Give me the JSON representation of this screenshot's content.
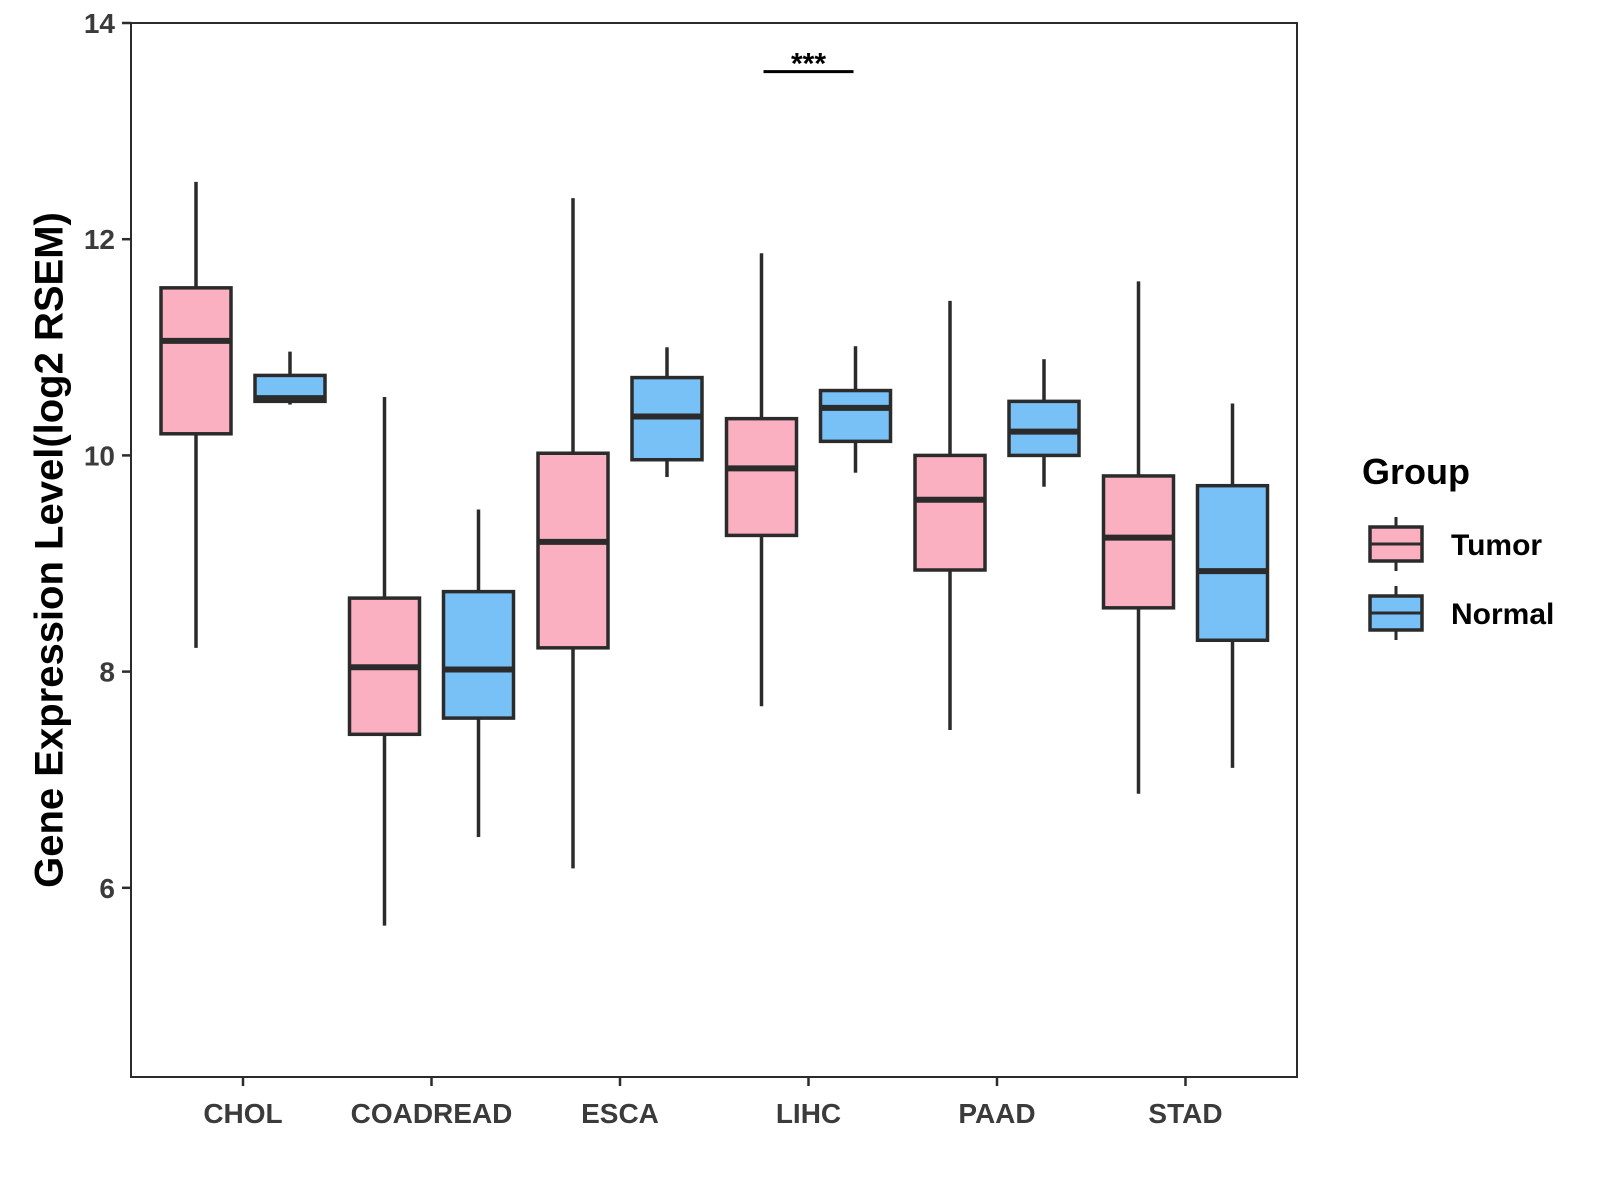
{
  "chart_data": {
    "type": "boxplot",
    "title": "",
    "xlabel": "",
    "ylabel": "Gene Expression Level(log2 RSEM)",
    "ylim": [
      4.25,
      14
    ],
    "yticks": [
      6,
      8,
      10,
      12,
      14
    ],
    "grid": false,
    "categories": [
      "CHOL",
      "COADREAD",
      "ESCA",
      "LIHC",
      "PAAD",
      "STAD"
    ],
    "legend": {
      "title": "Group",
      "position": "right"
    },
    "series": [
      {
        "name": "Tumor",
        "color": "#fbb0c2",
        "boxes": [
          {
            "whisker_low": 8.22,
            "q1": 10.2,
            "median": 11.06,
            "q3": 11.55,
            "whisker_high": 12.53
          },
          {
            "whisker_low": 5.65,
            "q1": 7.42,
            "median": 8.04,
            "q3": 8.68,
            "whisker_high": 10.54
          },
          {
            "whisker_low": 6.18,
            "q1": 8.22,
            "median": 9.2,
            "q3": 10.02,
            "whisker_high": 12.38
          },
          {
            "whisker_low": 7.68,
            "q1": 9.26,
            "median": 9.88,
            "q3": 10.34,
            "whisker_high": 11.87
          },
          {
            "whisker_low": 7.46,
            "q1": 8.94,
            "median": 9.59,
            "q3": 10.0,
            "whisker_high": 11.43
          },
          {
            "whisker_low": 6.87,
            "q1": 8.59,
            "median": 9.24,
            "q3": 9.81,
            "whisker_high": 11.61
          }
        ]
      },
      {
        "name": "Normal",
        "color": "#78c1f7",
        "boxes": [
          {
            "whisker_low": 10.47,
            "q1": 10.5,
            "median": 10.53,
            "q3": 10.74,
            "whisker_high": 10.96
          },
          {
            "whisker_low": 6.47,
            "q1": 7.57,
            "median": 8.02,
            "q3": 8.74,
            "whisker_high": 9.5
          },
          {
            "whisker_low": 9.8,
            "q1": 9.96,
            "median": 10.36,
            "q3": 10.72,
            "whisker_high": 11.0
          },
          {
            "whisker_low": 9.84,
            "q1": 10.13,
            "median": 10.44,
            "q3": 10.6,
            "whisker_high": 11.01
          },
          {
            "whisker_low": 9.71,
            "q1": 10.0,
            "median": 10.22,
            "q3": 10.5,
            "whisker_high": 10.89
          },
          {
            "whisker_low": 7.11,
            "q1": 8.29,
            "median": 8.93,
            "q3": 9.72,
            "whisker_high": 10.48
          }
        ]
      }
    ],
    "annotations": [
      {
        "category": "LIHC",
        "label": "***",
        "y": 13.55
      }
    ]
  }
}
